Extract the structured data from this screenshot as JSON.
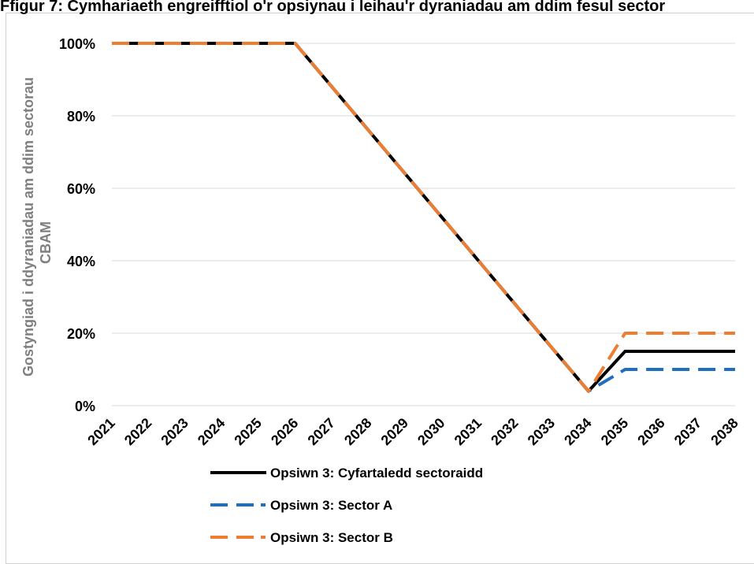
{
  "chart_data": {
    "type": "line",
    "title": "Ffigur 7: Cymhariaeth engreifftiol o'r opsiynau i leihau'r dyraniadau am ddim fesul sector",
    "ylabel_lines": [
      "Gostyngiad i ddyraniadau am ddim sectorau",
      "CBAM"
    ],
    "xlabel": "",
    "x": [
      "2021",
      "2022",
      "2023",
      "2024",
      "2025",
      "2026",
      "2027",
      "2028",
      "2029",
      "2030",
      "2031",
      "2032",
      "2033",
      "2034",
      "2035",
      "2036",
      "2037",
      "2038"
    ],
    "ylim": [
      0,
      100
    ],
    "yticks": [
      0,
      20,
      40,
      60,
      80,
      100
    ],
    "ytick_labels": [
      "0%",
      "20%",
      "40%",
      "60%",
      "80%",
      "100%"
    ],
    "grid": true,
    "legend_position": "bottom",
    "series": [
      {
        "name": "Opsiwn 3: Cyfartaledd sectoraidd",
        "color": "#000000",
        "style": "solid",
        "values": [
          100,
          100,
          100,
          100,
          100,
          100,
          88,
          76,
          64,
          52,
          40,
          28,
          16,
          4,
          15,
          15,
          15,
          15
        ]
      },
      {
        "name": "Opsiwn 3: Sector A",
        "color": "#1f6fc1",
        "style": "dashed",
        "values": [
          100,
          100,
          100,
          100,
          100,
          100,
          88,
          76,
          64,
          52,
          40,
          28,
          16,
          4,
          10,
          10,
          10,
          10
        ]
      },
      {
        "name": "Opsiwn 3: Sector B",
        "color": "#ed7d31",
        "style": "dashed",
        "values": [
          100,
          100,
          100,
          100,
          100,
          100,
          88,
          76,
          64,
          52,
          40,
          28,
          16,
          4,
          20,
          20,
          20,
          20
        ]
      }
    ]
  }
}
